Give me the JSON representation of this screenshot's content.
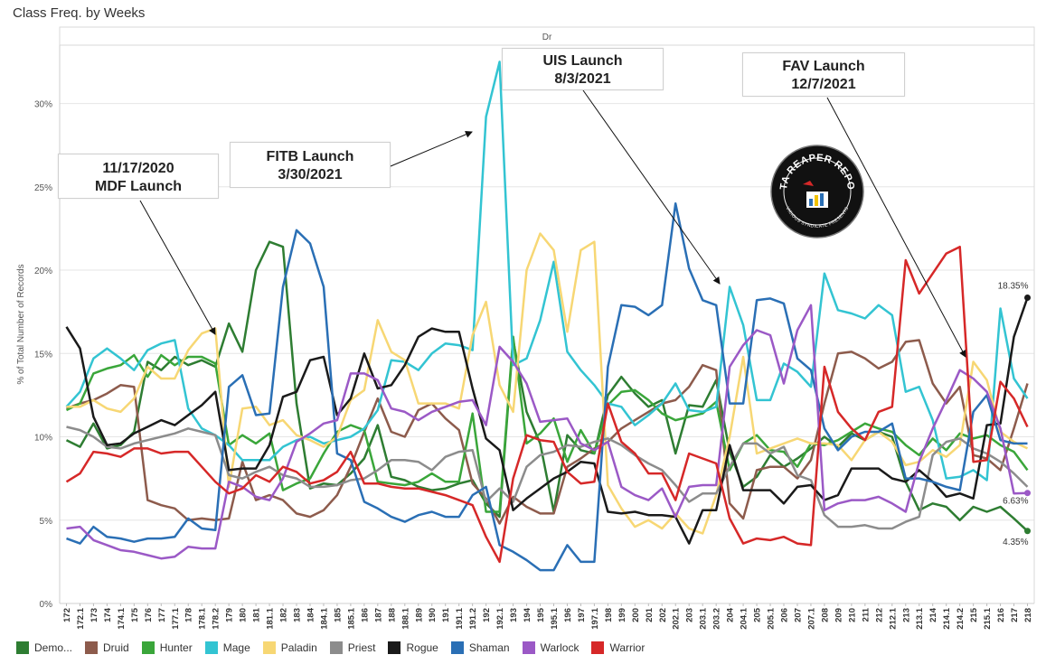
{
  "page_title": "Class Freq. by Weeks",
  "legend": [
    {
      "name": "Demo...",
      "color": "#2e7d32"
    },
    {
      "name": "Druid",
      "color": "#8d5b4c"
    },
    {
      "name": "Hunter",
      "color": "#3aa63a"
    },
    {
      "name": "Mage",
      "color": "#33c4d2"
    },
    {
      "name": "Paladin",
      "color": "#f7d774"
    },
    {
      "name": "Priest",
      "color": "#8c8c8c"
    },
    {
      "name": "Rogue",
      "color": "#1a1a1a"
    },
    {
      "name": "Shaman",
      "color": "#2a6fb5"
    },
    {
      "name": "Warlock",
      "color": "#9b59c6"
    },
    {
      "name": "Warrior",
      "color": "#d62828"
    }
  ],
  "annotations": [
    {
      "line1": "11/17/2020",
      "line2": "MDF Launch"
    },
    {
      "line1": "FITB Launch",
      "line2": "3/30/2021"
    },
    {
      "line1": "UIS Launch",
      "line2": "8/3/2021"
    },
    {
      "line1": "FAV Launch",
      "line2": "12/7/2021"
    }
  ],
  "badge": {
    "line1": "DATA REAPER REPORT",
    "line2": "VICIOUS SYNDICATE PRESENTS"
  },
  "end_labels": [
    "18.35%",
    "6.63%",
    "4.35%"
  ],
  "chart_data": {
    "type": "line",
    "title": "Class Freq. by Weeks",
    "column_header": "Dr",
    "ylabel": "% of Total Number of Records",
    "ylim": [
      0,
      33.5
    ],
    "y_ticks": [
      "0%",
      "5%",
      "10%",
      "15%",
      "20%",
      "25%",
      "30%"
    ],
    "grid": true,
    "legend_position": "bottom",
    "x": [
      "172",
      "172.1",
      "173",
      "174",
      "174.1",
      "175",
      "176",
      "177",
      "177.1",
      "178",
      "178.1",
      "178.2",
      "179",
      "180",
      "181",
      "181.1",
      "182",
      "183",
      "184",
      "184.1",
      "185",
      "185.1",
      "186",
      "187",
      "188",
      "188.1",
      "189",
      "190",
      "191",
      "191.1",
      "191.2",
      "192",
      "192.1",
      "193",
      "194",
      "195",
      "195.1",
      "196",
      "197",
      "197.1",
      "198",
      "199",
      "200",
      "201",
      "202",
      "202.1",
      "203",
      "203.1",
      "203.2",
      "204",
      "204.1",
      "205",
      "205.1",
      "206",
      "207",
      "207.1",
      "208",
      "209",
      "210",
      "211",
      "212",
      "212.1",
      "213",
      "213.1",
      "214",
      "214.1",
      "214.2",
      "215",
      "215.1",
      "216",
      "217",
      "218"
    ],
    "x_labels": [
      "172",
      "172.1",
      "173",
      "174",
      "174.1",
      "175",
      "176",
      "177",
      "177.1",
      "178",
      "178.1",
      "178.2",
      "179",
      "180",
      "181",
      "181.1",
      "182",
      "183",
      "184",
      "184.1",
      "185",
      "185.1",
      "186",
      "187",
      "188",
      "188.1",
      "189",
      "190",
      "191",
      "191.1",
      "191.2",
      "192",
      "192.1",
      "193",
      "194",
      "195",
      "195.1",
      "196",
      "197",
      "197.1",
      "198",
      "199",
      "200",
      "201",
      "202",
      "202.1",
      "203",
      "203.1",
      "203.2",
      "204",
      "204.1",
      "205",
      "205.1",
      "206",
      "207",
      "207.1",
      "208",
      "209",
      "210",
      "211",
      "212",
      "212.1",
      "213",
      "213.1",
      "214",
      "214.1",
      "214.2",
      "215",
      "215.1",
      "216",
      "217",
      "218"
    ],
    "series": [
      {
        "name": "Demo...",
        "color": "#2e7d32",
        "values": [
          9.8,
          9.4,
          10.8,
          9.3,
          9.5,
          10.3,
          14.5,
          14.0,
          14.8,
          14.3,
          14.6,
          14.2,
          16.8,
          15.1,
          20.0,
          21.7,
          21.4,
          12.0,
          6.9,
          7.2,
          7.1,
          7.8,
          8.7,
          10.7,
          7.6,
          7.4,
          7.0,
          6.8,
          6.9,
          7.2,
          7.4,
          6.0,
          5.2,
          15.8,
          11.5,
          9.6,
          5.5,
          10.1,
          9.2,
          9.0,
          12.5,
          13.6,
          12.6,
          11.8,
          12.2,
          9.0,
          11.9,
          11.8,
          13.4,
          9.1,
          7.0,
          7.6,
          8.9,
          8.2,
          8.7,
          9.3,
          10.0,
          9.4,
          10.2,
          9.8,
          10.3,
          10.0,
          7.3,
          5.6,
          6.0,
          5.8,
          5.0,
          5.8,
          5.5,
          5.8,
          5.1,
          4.35
        ]
      },
      {
        "name": "Druid",
        "color": "#8d5b4c",
        "values": [
          11.7,
          12.0,
          12.2,
          12.6,
          13.1,
          13.0,
          6.2,
          5.9,
          5.7,
          5.0,
          5.1,
          5.0,
          5.1,
          8.5,
          6.2,
          6.5,
          6.2,
          5.4,
          5.2,
          5.6,
          6.5,
          8.2,
          10.3,
          12.3,
          10.3,
          10.0,
          11.6,
          12.0,
          11.1,
          10.4,
          7.2,
          6.3,
          4.8,
          6.4,
          5.8,
          5.4,
          5.4,
          8.2,
          8.7,
          9.3,
          9.7,
          10.5,
          11.0,
          11.5,
          12.0,
          12.2,
          13.0,
          14.3,
          14.0,
          6.0,
          5.1,
          8.0,
          8.2,
          8.2,
          7.5,
          8.6,
          12.0,
          15.0,
          15.1,
          14.7,
          14.1,
          14.5,
          15.7,
          15.8,
          13.2,
          12.0,
          13.0,
          8.9,
          8.7,
          8.0,
          10.5,
          13.2
        ]
      },
      {
        "name": "Hunter",
        "color": "#3aa63a",
        "values": [
          11.6,
          12.0,
          13.8,
          14.1,
          14.3,
          14.9,
          13.6,
          14.9,
          14.3,
          14.8,
          14.8,
          14.4,
          9.5,
          10.1,
          9.6,
          10.2,
          6.8,
          7.2,
          7.5,
          9.0,
          10.3,
          10.7,
          10.4,
          7.3,
          7.2,
          7.1,
          7.3,
          7.8,
          7.3,
          7.3,
          11.4,
          5.5,
          5.5,
          16.0,
          9.6,
          10.2,
          11.1,
          8.5,
          10.4,
          9.0,
          11.9,
          12.7,
          12.8,
          12.2,
          11.4,
          11.0,
          11.2,
          11.4,
          12.1,
          8.0,
          9.6,
          10.1,
          9.2,
          9.1,
          8.2,
          9.6,
          9.5,
          9.8,
          10.3,
          10.8,
          10.5,
          10.3,
          9.5,
          8.9,
          9.9,
          9.2,
          10.2,
          9.9,
          10.1,
          9.5,
          9.1,
          8.0
        ]
      },
      {
        "name": "Mage",
        "color": "#33c4d2",
        "values": [
          11.8,
          12.7,
          14.7,
          15.3,
          14.7,
          14.0,
          15.2,
          15.6,
          15.8,
          11.7,
          10.5,
          10.1,
          9.5,
          8.6,
          8.6,
          8.6,
          9.4,
          9.8,
          10.0,
          9.6,
          9.8,
          10.0,
          10.5,
          11.6,
          14.6,
          14.5,
          14.0,
          15.0,
          15.6,
          15.5,
          15.2,
          29.2,
          32.5,
          14.3,
          14.7,
          17.0,
          20.5,
          15.1,
          14.0,
          13.1,
          12.0,
          11.8,
          10.7,
          11.3,
          12.0,
          13.2,
          11.6,
          11.5,
          11.8,
          19.0,
          16.7,
          12.2,
          12.2,
          14.4,
          13.9,
          13.0,
          19.8,
          17.6,
          17.4,
          17.1,
          17.9,
          17.3,
          12.7,
          13.0,
          11.0,
          7.5,
          7.6,
          8.0,
          7.4,
          17.7,
          13.5,
          12.3
        ]
      },
      {
        "name": "Paladin",
        "color": "#f7d774",
        "values": [
          11.8,
          11.8,
          12.2,
          11.7,
          11.5,
          12.3,
          14.2,
          13.5,
          13.5,
          15.2,
          16.2,
          16.5,
          7.0,
          11.7,
          11.8,
          10.7,
          11.0,
          10.1,
          9.8,
          9.4,
          10.0,
          12.2,
          12.8,
          17.0,
          15.1,
          14.6,
          12.0,
          12.0,
          12.0,
          11.7,
          16.1,
          18.1,
          13.1,
          11.5,
          20.0,
          22.2,
          21.2,
          16.3,
          21.2,
          21.7,
          7.1,
          5.7,
          4.6,
          5.0,
          4.5,
          5.4,
          4.5,
          4.2,
          6.5,
          10.0,
          14.8,
          9.0,
          9.3,
          9.6,
          9.9,
          9.6,
          9.6,
          9.5,
          8.6,
          9.8,
          10.3,
          9.7,
          8.3,
          8.5,
          9.2,
          8.8,
          9.5,
          14.5,
          13.4,
          10.3,
          9.7,
          9.3
        ]
      },
      {
        "name": "Priest",
        "color": "#8c8c8c",
        "values": [
          10.6,
          10.4,
          10.0,
          9.4,
          9.3,
          9.6,
          9.8,
          10.0,
          10.2,
          10.5,
          10.3,
          10.1,
          7.7,
          7.5,
          7.9,
          8.2,
          7.7,
          7.5,
          7.0,
          7.0,
          7.1,
          7.4,
          7.5,
          8.0,
          8.6,
          8.6,
          8.5,
          8.0,
          8.8,
          9.1,
          9.2,
          6.1,
          6.9,
          6.1,
          8.2,
          8.9,
          9.1,
          9.5,
          9.4,
          9.7,
          9.9,
          9.5,
          8.9,
          8.4,
          8.0,
          7.1,
          6.1,
          6.6,
          6.6,
          8.2,
          9.6,
          9.6,
          9.0,
          9.4,
          7.7,
          7.4,
          5.3,
          4.6,
          4.6,
          4.7,
          4.5,
          4.5,
          4.9,
          5.2,
          8.9,
          9.7,
          9.9,
          9.3,
          9.0,
          8.5,
          7.8,
          7.0
        ]
      },
      {
        "name": "Rogue",
        "color": "#1a1a1a",
        "values": [
          16.6,
          15.3,
          11.2,
          9.5,
          9.6,
          10.2,
          10.6,
          11.0,
          10.7,
          11.3,
          11.9,
          12.7,
          8.0,
          8.1,
          8.1,
          9.5,
          12.4,
          12.7,
          14.6,
          14.8,
          11.3,
          12.3,
          15.0,
          12.9,
          13.1,
          14.3,
          16.0,
          16.5,
          16.3,
          16.3,
          12.9,
          9.9,
          9.2,
          5.6,
          6.3,
          6.9,
          7.5,
          7.9,
          8.5,
          8.4,
          5.5,
          5.4,
          5.5,
          5.3,
          5.3,
          5.2,
          3.6,
          5.6,
          5.6,
          9.5,
          6.8,
          6.8,
          6.8,
          6.0,
          7.0,
          7.1,
          6.2,
          6.5,
          8.1,
          8.1,
          8.1,
          7.5,
          7.3,
          8.0,
          7.3,
          6.4,
          6.6,
          6.3,
          10.7,
          10.8,
          16.0,
          18.35
        ]
      },
      {
        "name": "Shaman",
        "color": "#2a6fb5",
        "values": [
          3.9,
          3.6,
          4.6,
          4.0,
          3.9,
          3.7,
          3.9,
          3.9,
          4.0,
          5.1,
          4.5,
          4.4,
          13.0,
          13.7,
          11.3,
          11.4,
          19.0,
          22.4,
          21.6,
          19.0,
          9.0,
          8.6,
          6.1,
          5.7,
          5.2,
          4.9,
          5.3,
          5.5,
          5.2,
          5.2,
          6.5,
          7.0,
          3.5,
          3.1,
          2.6,
          2.0,
          2.0,
          3.5,
          2.5,
          2.5,
          14.2,
          17.9,
          17.8,
          17.3,
          17.9,
          24.0,
          20.1,
          18.2,
          17.9,
          12.0,
          12.0,
          18.2,
          18.3,
          18.0,
          14.7,
          14.0,
          10.5,
          9.2,
          10.0,
          10.3,
          10.3,
          10.8,
          7.5,
          7.5,
          7.3,
          7.0,
          6.8,
          11.5,
          12.5,
          9.8,
          9.6,
          9.6
        ]
      },
      {
        "name": "Warlock",
        "color": "#9b59c6",
        "values": [
          4.5,
          4.6,
          3.8,
          3.5,
          3.2,
          3.1,
          2.9,
          2.7,
          2.8,
          3.4,
          3.3,
          3.3,
          7.3,
          7.0,
          6.4,
          6.2,
          7.5,
          9.7,
          10.2,
          10.8,
          11.0,
          13.8,
          13.8,
          13.4,
          11.7,
          11.5,
          11.0,
          11.5,
          11.8,
          12.1,
          12.2,
          10.7,
          15.4,
          14.5,
          13.2,
          10.9,
          11.0,
          11.1,
          9.6,
          9.2,
          9.7,
          7.0,
          6.5,
          6.2,
          6.9,
          5.2,
          7.0,
          7.1,
          7.1,
          14.2,
          15.5,
          16.4,
          16.1,
          13.2,
          16.4,
          17.9,
          5.6,
          6.0,
          6.2,
          6.2,
          6.4,
          6.0,
          5.5,
          8.5,
          10.5,
          12.2,
          14.0,
          13.5,
          12.7,
          10.5,
          6.6,
          6.63
        ]
      },
      {
        "name": "Warrior",
        "color": "#d62828",
        "values": [
          7.3,
          7.8,
          9.1,
          9.0,
          8.8,
          9.3,
          9.3,
          9.0,
          9.1,
          9.1,
          8.2,
          7.3,
          6.6,
          6.9,
          7.7,
          7.3,
          8.2,
          7.9,
          7.2,
          7.4,
          7.9,
          9.1,
          7.2,
          7.2,
          7.0,
          6.9,
          6.9,
          6.7,
          6.5,
          6.2,
          5.9,
          4.0,
          2.5,
          7.5,
          10.1,
          9.8,
          9.7,
          7.9,
          7.2,
          7.3,
          12.0,
          9.7,
          9.0,
          7.8,
          7.8,
          6.2,
          9.0,
          8.7,
          8.4,
          5.1,
          3.6,
          3.9,
          3.8,
          4.0,
          3.6,
          3.5,
          14.2,
          11.5,
          10.5,
          9.8,
          11.5,
          11.8,
          20.6,
          18.6,
          19.8,
          21.0,
          21.4,
          8.5,
          8.6,
          13.3,
          12.3,
          10.6
        ]
      }
    ]
  }
}
